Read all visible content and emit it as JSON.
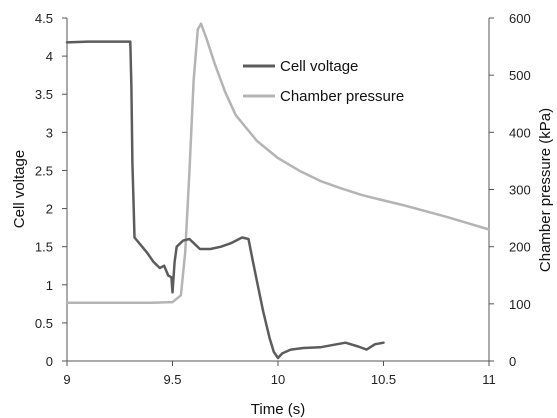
{
  "chart_data": {
    "type": "line",
    "title": "",
    "xlabel": "Time  (s)",
    "ylabel_left": "Cell voltage",
    "ylabel_right": "Chamber pressure  (kPa)",
    "xlim": [
      9,
      11
    ],
    "ylim_left": [
      0,
      4.5
    ],
    "ylim_right": [
      0,
      600
    ],
    "x_ticks": [
      "9",
      "9.5",
      "10",
      "10.5",
      "11"
    ],
    "y_ticks_left": [
      "0",
      "0.5",
      "1",
      "1.5",
      "2",
      "2.5",
      "3",
      "3.5",
      "4",
      "4.5"
    ],
    "y_ticks_right": [
      "0",
      "100",
      "200",
      "300",
      "400",
      "500",
      "600"
    ],
    "grid": false,
    "legend": {
      "position": "top-right-inside",
      "entries": [
        "Cell voltage",
        "Chamber pressure"
      ]
    },
    "series": [
      {
        "name": "Cell voltage",
        "axis": "left",
        "color": "#5c5c5c",
        "points": [
          [
            9.0,
            4.18
          ],
          [
            9.1,
            4.19
          ],
          [
            9.2,
            4.19
          ],
          [
            9.3,
            4.19
          ],
          [
            9.305,
            3.6
          ],
          [
            9.31,
            2.6
          ],
          [
            9.315,
            2.1
          ],
          [
            9.32,
            1.62
          ],
          [
            9.35,
            1.52
          ],
          [
            9.38,
            1.42
          ],
          [
            9.41,
            1.3
          ],
          [
            9.44,
            1.22
          ],
          [
            9.46,
            1.25
          ],
          [
            9.48,
            1.12
          ],
          [
            9.495,
            1.1
          ],
          [
            9.5,
            0.9
          ],
          [
            9.51,
            1.3
          ],
          [
            9.52,
            1.5
          ],
          [
            9.55,
            1.58
          ],
          [
            9.58,
            1.6
          ],
          [
            9.6,
            1.55
          ],
          [
            9.63,
            1.47
          ],
          [
            9.68,
            1.47
          ],
          [
            9.73,
            1.5
          ],
          [
            9.78,
            1.55
          ],
          [
            9.83,
            1.62
          ],
          [
            9.86,
            1.6
          ],
          [
            9.88,
            1.32
          ],
          [
            9.9,
            1.05
          ],
          [
            9.93,
            0.65
          ],
          [
            9.96,
            0.3
          ],
          [
            9.98,
            0.12
          ],
          [
            10.0,
            0.04
          ],
          [
            10.02,
            0.1
          ],
          [
            10.06,
            0.15
          ],
          [
            10.12,
            0.17
          ],
          [
            10.2,
            0.18
          ],
          [
            10.28,
            0.22
          ],
          [
            10.32,
            0.24
          ],
          [
            10.38,
            0.19
          ],
          [
            10.42,
            0.15
          ],
          [
            10.46,
            0.22
          ],
          [
            10.5,
            0.24
          ]
        ]
      },
      {
        "name": "Chamber pressure",
        "axis": "right",
        "color": "#b4b4b4",
        "points": [
          [
            9.0,
            102
          ],
          [
            9.2,
            102
          ],
          [
            9.4,
            102
          ],
          [
            9.5,
            103
          ],
          [
            9.54,
            115
          ],
          [
            9.56,
            190
          ],
          [
            9.58,
            330
          ],
          [
            9.6,
            490
          ],
          [
            9.62,
            580
          ],
          [
            9.635,
            590
          ],
          [
            9.66,
            565
          ],
          [
            9.7,
            520
          ],
          [
            9.75,
            470
          ],
          [
            9.8,
            430
          ],
          [
            9.9,
            385
          ],
          [
            10.0,
            355
          ],
          [
            10.1,
            333
          ],
          [
            10.2,
            315
          ],
          [
            10.3,
            302
          ],
          [
            10.4,
            290
          ],
          [
            10.5,
            281
          ],
          [
            10.6,
            272
          ],
          [
            10.7,
            262
          ],
          [
            10.8,
            252
          ],
          [
            10.9,
            241
          ],
          [
            11.0,
            230
          ]
        ]
      }
    ]
  }
}
